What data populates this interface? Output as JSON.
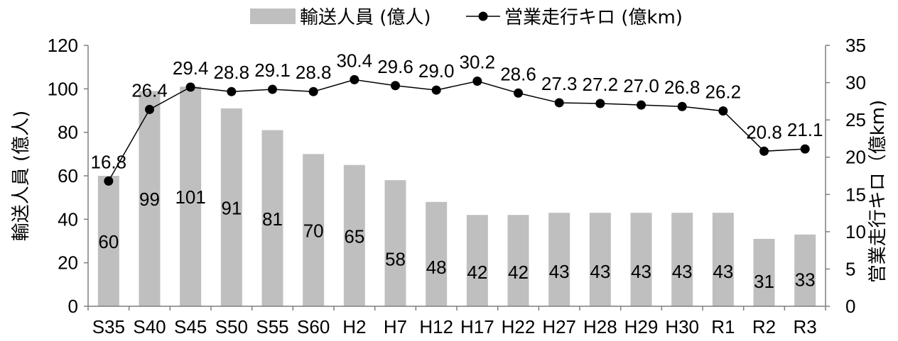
{
  "chart_data": {
    "type": "bar+line",
    "categories": [
      "S35",
      "S40",
      "S45",
      "S50",
      "S55",
      "S60",
      "H2",
      "H7",
      "H12",
      "H17",
      "H22",
      "H27",
      "H28",
      "H29",
      "H30",
      "R1",
      "R2",
      "R3"
    ],
    "series": [
      {
        "name": "輸送人員 (億人)",
        "type": "bar",
        "axis": "left",
        "color": "#bfbfbf",
        "values": [
          60,
          99,
          101,
          91,
          81,
          70,
          65,
          58,
          48,
          42,
          42,
          43,
          43,
          43,
          43,
          43,
          31,
          33
        ],
        "labels": [
          "60",
          "99",
          "101",
          "91",
          "81",
          "70",
          "65",
          "58",
          "48",
          "42",
          "42",
          "43",
          "43",
          "43",
          "43",
          "43",
          "31",
          "33"
        ]
      },
      {
        "name": "営業走行キロ (億km)",
        "type": "line",
        "axis": "right",
        "color": "#000000",
        "values": [
          16.8,
          26.4,
          29.4,
          28.8,
          29.1,
          28.8,
          30.4,
          29.6,
          29.0,
          30.2,
          28.6,
          27.3,
          27.2,
          27.0,
          26.8,
          26.2,
          20.8,
          21.1
        ],
        "labels": [
          "16.8",
          "26.4",
          "29.4",
          "28.8",
          "29.1",
          "28.8",
          "30.4",
          "29.6",
          "29.0",
          "30.2",
          "28.6",
          "27.3",
          "27.2",
          "27.0",
          "26.8",
          "26.2",
          "20.8",
          "21.1"
        ]
      }
    ],
    "y_left": {
      "label": "輸送人員 (億人)",
      "min": 0,
      "max": 120,
      "ticks": [
        "0",
        "20",
        "40",
        "60",
        "80",
        "100",
        "120"
      ]
    },
    "y_right": {
      "label": "営業走行キロ（億km)",
      "min": 0,
      "max": 35,
      "ticks": [
        "0",
        "5",
        "10",
        "15",
        "20",
        "25",
        "30",
        "35"
      ]
    },
    "legend": {
      "position": "top"
    },
    "grid": false
  }
}
